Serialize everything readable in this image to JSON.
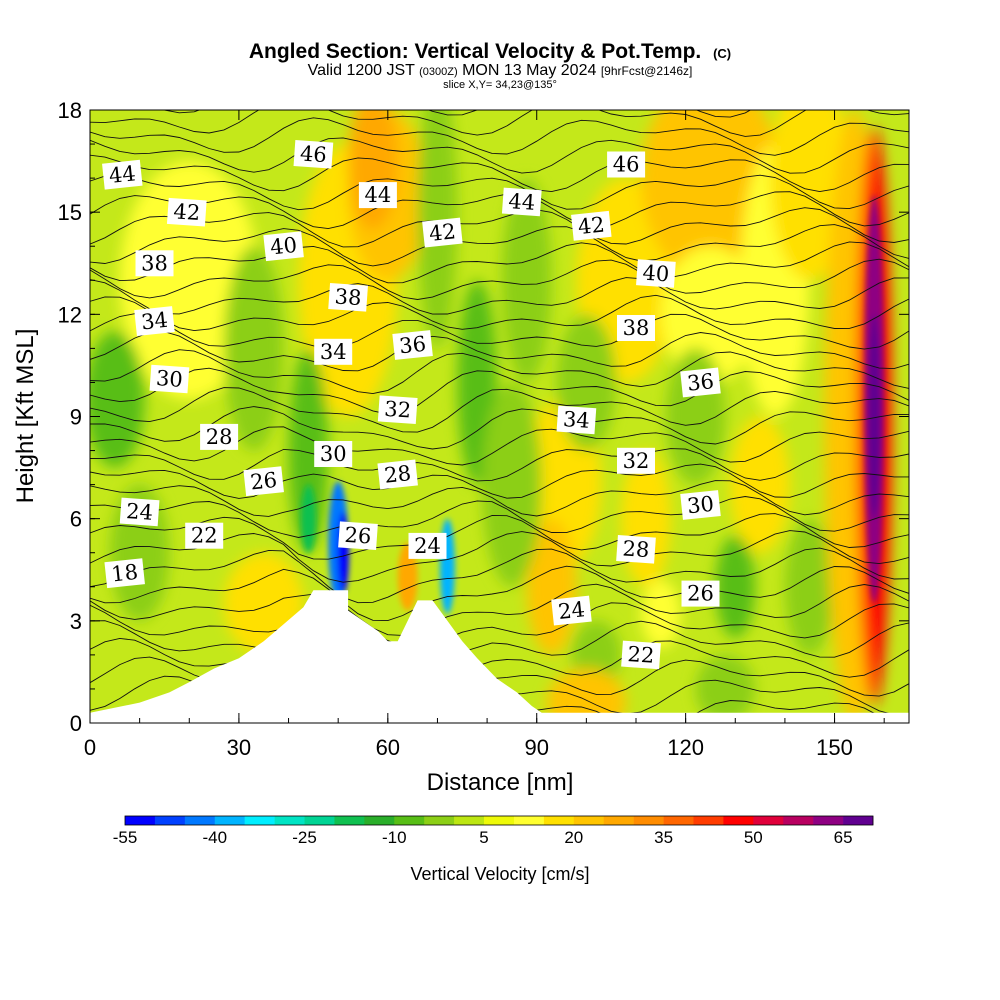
{
  "title": {
    "main": "Angled Section: Vertical Velocity & Pot.Temp.",
    "main_unit": "(C)",
    "valid_prefix": "Valid 1200 JST",
    "valid_utc": "(0300Z)",
    "valid_date": "MON 13 May 2024",
    "valid_run": "[9hrFcst@2146z]",
    "slice": "slice X,Y= 34,23@135°"
  },
  "chart_data": {
    "type": "heatmap",
    "xlabel": "Distance [nm]",
    "ylabel": "Height [Kft MSL]",
    "xlim": [
      0,
      165
    ],
    "ylim": [
      0,
      18
    ],
    "x_ticks": [
      0,
      30,
      60,
      90,
      120,
      150
    ],
    "y_ticks": [
      0,
      3,
      6,
      9,
      12,
      15,
      18
    ],
    "terrain_kft": [
      [
        0,
        0.3
      ],
      [
        10,
        0.6
      ],
      [
        16,
        0.9
      ],
      [
        20,
        1.2
      ],
      [
        25,
        1.6
      ],
      [
        30,
        1.9
      ],
      [
        35,
        2.4
      ],
      [
        39,
        2.9
      ],
      [
        43,
        3.4
      ],
      [
        45,
        3.9
      ],
      [
        52,
        3.9
      ],
      [
        52,
        3.3
      ],
      [
        55,
        3.0
      ],
      [
        58,
        2.7
      ],
      [
        60,
        2.4
      ],
      [
        62,
        2.4
      ],
      [
        64,
        3.0
      ],
      [
        66,
        3.6
      ],
      [
        69,
        3.6
      ],
      [
        72,
        3.0
      ],
      [
        75,
        2.4
      ],
      [
        78,
        1.9
      ],
      [
        82,
        1.3
      ],
      [
        86,
        0.9
      ],
      [
        89,
        0.5
      ],
      [
        91,
        0.3
      ],
      [
        165,
        0.3
      ]
    ],
    "theta_contours_c": [
      18,
      22,
      24,
      26,
      28,
      30,
      32,
      34,
      36,
      38,
      40,
      42,
      44,
      46
    ],
    "contour_labels": [
      {
        "v": "44",
        "x": 6.5,
        "y": 16.1
      },
      {
        "v": "42",
        "x": 19.5,
        "y": 15.0
      },
      {
        "v": "38",
        "x": 13,
        "y": 13.5
      },
      {
        "v": "34",
        "x": 13,
        "y": 11.8
      },
      {
        "v": "30",
        "x": 16,
        "y": 10.1
      },
      {
        "v": "28",
        "x": 26,
        "y": 8.4
      },
      {
        "v": "26",
        "x": 35,
        "y": 7.1
      },
      {
        "v": "24",
        "x": 10,
        "y": 6.2
      },
      {
        "v": "22",
        "x": 23,
        "y": 5.5
      },
      {
        "v": "18",
        "x": 7,
        "y": 4.4
      },
      {
        "v": "46",
        "x": 45,
        "y": 16.7
      },
      {
        "v": "44",
        "x": 58,
        "y": 15.5
      },
      {
        "v": "40",
        "x": 39,
        "y": 14.0
      },
      {
        "v": "38",
        "x": 52,
        "y": 12.5
      },
      {
        "v": "34",
        "x": 49,
        "y": 10.9
      },
      {
        "v": "36",
        "x": 65,
        "y": 11.1
      },
      {
        "v": "32",
        "x": 62,
        "y": 9.2
      },
      {
        "v": "30",
        "x": 49,
        "y": 7.9
      },
      {
        "v": "28",
        "x": 62,
        "y": 7.3
      },
      {
        "v": "26",
        "x": 54,
        "y": 5.5
      },
      {
        "v": "24",
        "x": 68,
        "y": 5.2
      },
      {
        "v": "42",
        "x": 71,
        "y": 14.4
      },
      {
        "v": "44",
        "x": 87,
        "y": 15.3
      },
      {
        "v": "46",
        "x": 108,
        "y": 16.4
      },
      {
        "v": "42",
        "x": 101,
        "y": 14.6
      },
      {
        "v": "40",
        "x": 114,
        "y": 13.2
      },
      {
        "v": "38",
        "x": 110,
        "y": 11.6
      },
      {
        "v": "36",
        "x": 123,
        "y": 10.0
      },
      {
        "v": "34",
        "x": 98,
        "y": 8.9
      },
      {
        "v": "32",
        "x": 110,
        "y": 7.7
      },
      {
        "v": "30",
        "x": 123,
        "y": 6.4
      },
      {
        "v": "28",
        "x": 110,
        "y": 5.1
      },
      {
        "v": "26",
        "x": 123,
        "y": 3.8
      },
      {
        "v": "24",
        "x": 97,
        "y": 3.3
      },
      {
        "v": "22",
        "x": 111,
        "y": 2.0
      }
    ],
    "colorbar": {
      "label": "Vertical Velocity [cm/s]",
      "tick_labels": [
        "-55",
        "-40",
        "-25",
        "-10",
        "5",
        "20",
        "35",
        "50",
        "65"
      ],
      "bin_edges": [
        -55,
        70
      ],
      "bin_step": 5,
      "colors": [
        "#0000ff",
        "#0040ff",
        "#0078ff",
        "#00b4ff",
        "#00eeff",
        "#00e4c4",
        "#00d494",
        "#10c050",
        "#2aae2a",
        "#58be16",
        "#8ccf16",
        "#bce612",
        "#eefa08",
        "#ffff30",
        "#ffe000",
        "#ffc400",
        "#ffa800",
        "#ff8c00",
        "#ff6600",
        "#ff3c00",
        "#ff0000",
        "#e0003a",
        "#b80060",
        "#8e0082",
        "#600090"
      ]
    }
  }
}
